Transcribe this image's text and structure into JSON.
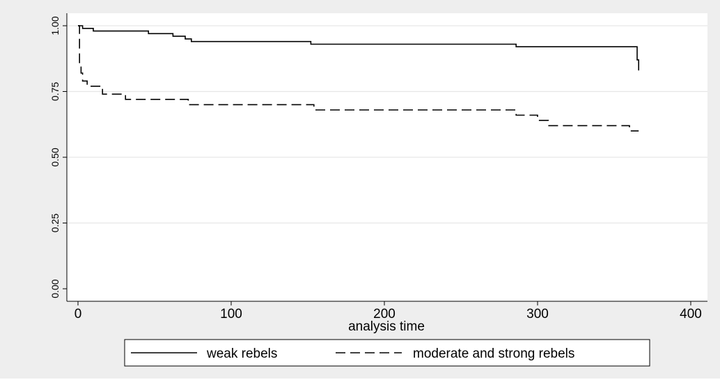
{
  "chart_data": {
    "type": "line",
    "title": "",
    "xlabel": "analysis time",
    "ylabel": "",
    "xlim": [
      0,
      400
    ],
    "ylim": [
      0,
      1
    ],
    "xticks": [
      0,
      100,
      200,
      300,
      400
    ],
    "xtick_labels": [
      "0",
      "100",
      "200",
      "300",
      "400"
    ],
    "yticks": [
      0,
      0.25,
      0.5,
      0.75,
      1
    ],
    "ytick_labels": [
      "0.00",
      "0.25",
      "0.50",
      "0.75",
      "1.00"
    ],
    "grid": true,
    "legend_position": "bottom",
    "series": [
      {
        "name": "weak rebels",
        "style": "solid",
        "color": "#000000",
        "x": [
          0,
          3,
          3,
          10,
          10,
          46,
          46,
          62,
          62,
          70,
          70,
          74,
          74,
          152,
          152,
          286,
          286,
          365,
          365,
          366,
          366
        ],
        "y": [
          1.0,
          1.0,
          0.99,
          0.99,
          0.98,
          0.98,
          0.97,
          0.97,
          0.96,
          0.96,
          0.95,
          0.95,
          0.94,
          0.94,
          0.93,
          0.93,
          0.92,
          0.92,
          0.87,
          0.87,
          0.83
        ]
      },
      {
        "name": "moderate and strong rebels",
        "style": "dashed",
        "color": "#000000",
        "x": [
          0,
          1,
          1,
          2,
          2,
          3,
          3,
          6,
          6,
          16,
          16,
          31,
          31,
          72,
          72,
          154,
          154,
          286,
          286,
          300,
          300,
          307,
          307,
          360,
          360,
          366
        ],
        "y": [
          1.0,
          1.0,
          0.85,
          0.85,
          0.82,
          0.82,
          0.79,
          0.79,
          0.77,
          0.77,
          0.74,
          0.74,
          0.72,
          0.72,
          0.7,
          0.7,
          0.68,
          0.68,
          0.66,
          0.66,
          0.64,
          0.64,
          0.62,
          0.62,
          0.6,
          0.6
        ]
      }
    ]
  }
}
